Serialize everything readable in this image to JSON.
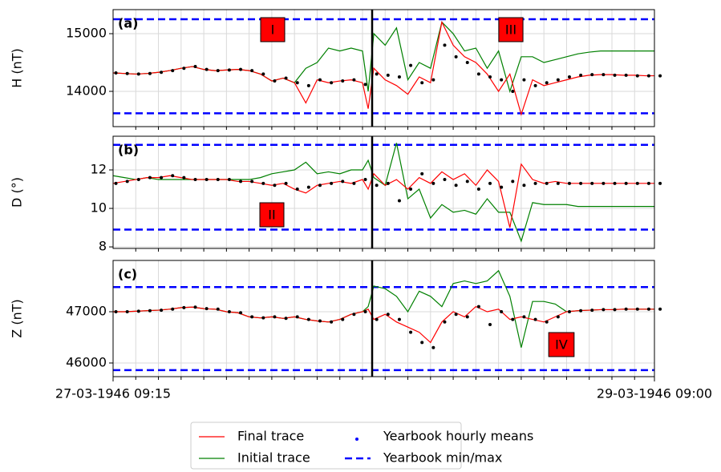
{
  "chart_data": [
    {
      "type": "line",
      "panel_label": "(a)",
      "ylabel": "H (nT)",
      "ylim": [
        13389,
        15417
      ],
      "yticks": [
        14000,
        15000
      ],
      "grid": true,
      "xlim": [
        0,
        47.75
      ],
      "xgrid": [
        2,
        4,
        6,
        8,
        10,
        12,
        14,
        16,
        18,
        20,
        22,
        24,
        26,
        28,
        30,
        32,
        34,
        36,
        38,
        40,
        42,
        44,
        46
      ],
      "divider_x": 22.85,
      "x": [
        0,
        1,
        2,
        3,
        4,
        5,
        6,
        7,
        8,
        9,
        10,
        11,
        12,
        13,
        14,
        15,
        16,
        17,
        18,
        19,
        20,
        21,
        22,
        22.5,
        23,
        24,
        25,
        26,
        27,
        28,
        29,
        30,
        31,
        32,
        33,
        34,
        35,
        36,
        37,
        38,
        39,
        40,
        41,
        42,
        43,
        44,
        45,
        46,
        47,
        47.75
      ],
      "series": [
        {
          "name": "Final trace",
          "color": "#ff0000",
          "values": [
            14320,
            14310,
            14300,
            14310,
            14330,
            14360,
            14400,
            14430,
            14380,
            14360,
            14370,
            14380,
            14360,
            14300,
            14180,
            14230,
            14150,
            13800,
            14200,
            14150,
            14180,
            14200,
            14150,
            13700,
            14400,
            14200,
            14100,
            13950,
            14250,
            14150,
            15200,
            14800,
            14600,
            14500,
            14300,
            14000,
            14300,
            13600,
            14200,
            14100,
            14150,
            14200,
            14250,
            14280,
            14290,
            14290,
            14280,
            14280,
            14270,
            14270
          ]
        },
        {
          "name": "Initial trace",
          "color": "#008000",
          "values": [
            14320,
            14310,
            14300,
            14310,
            14330,
            14360,
            14400,
            14430,
            14380,
            14360,
            14370,
            14380,
            14360,
            14300,
            14180,
            14230,
            14150,
            14400,
            14500,
            14750,
            14700,
            14750,
            14700,
            14000,
            15000,
            14800,
            15100,
            14200,
            14500,
            14400,
            15200,
            15000,
            14700,
            14750,
            14400,
            14700,
            14000,
            14600,
            14600,
            14500,
            14550,
            14600,
            14650,
            14680,
            14700,
            14700,
            14700,
            14700,
            14700,
            14700
          ]
        }
      ],
      "means": {
        "name": "Yearbook hourly means",
        "color": "#000000",
        "legend_color": "#0000ff",
        "x": [
          0.25,
          1.25,
          2.25,
          3.25,
          4.25,
          5.25,
          6.25,
          7.25,
          8.25,
          9.25,
          10.25,
          11.25,
          12.25,
          13.25,
          14.25,
          15.25,
          16.25,
          17.25,
          18.25,
          19.25,
          20.25,
          21.25,
          22.25,
          23.25,
          24.25,
          25.25,
          26.25,
          27.25,
          28.25,
          29.25,
          30.25,
          31.25,
          32.25,
          33.25,
          34.25,
          35.25,
          36.25,
          37.25,
          38.25,
          39.25,
          40.25,
          41.25,
          42.25,
          43.25,
          44.25,
          45.25,
          46.25,
          47.25,
          48.25
        ],
        "values": [
          14320,
          14310,
          14300,
          14310,
          14330,
          14360,
          14400,
          14430,
          14380,
          14360,
          14370,
          14380,
          14360,
          14300,
          14180,
          14230,
          14150,
          14100,
          14200,
          14150,
          14180,
          14200,
          14120,
          14300,
          14280,
          14250,
          14450,
          14150,
          14200,
          14800,
          14600,
          14500,
          14300,
          14250,
          14200,
          14000,
          14200,
          14100,
          14150,
          14200,
          14250,
          14280,
          14290,
          14290,
          14280,
          14280,
          14270,
          14270,
          14270
        ]
      },
      "minmax": {
        "name": "Yearbook min/max",
        "color": "#0000ff",
        "values": [
          15250,
          13620
        ]
      },
      "annotations": [
        "I",
        "III"
      ]
    },
    {
      "type": "line",
      "panel_label": "(b)",
      "ylabel": "D (°)",
      "ylim": [
        7.92,
        13.75
      ],
      "yticks": [
        8,
        10,
        12
      ],
      "grid": true,
      "xlim": [
        0,
        47.75
      ],
      "xgrid": [
        2,
        4,
        6,
        8,
        10,
        12,
        14,
        16,
        18,
        20,
        22,
        24,
        26,
        28,
        30,
        32,
        34,
        36,
        38,
        40,
        42,
        44,
        46
      ],
      "divider_x": 22.85,
      "x": [
        0,
        1,
        2,
        3,
        4,
        5,
        6,
        7,
        8,
        9,
        10,
        11,
        12,
        13,
        14,
        15,
        16,
        17,
        18,
        19,
        20,
        21,
        22,
        22.5,
        23,
        24,
        25,
        26,
        27,
        28,
        29,
        30,
        31,
        32,
        33,
        34,
        35,
        36,
        37,
        38,
        39,
        40,
        41,
        42,
        43,
        44,
        45,
        46,
        47,
        47.75
      ],
      "series": [
        {
          "name": "Final trace",
          "color": "#ff0000",
          "values": [
            11.3,
            11.4,
            11.5,
            11.6,
            11.6,
            11.7,
            11.6,
            11.5,
            11.5,
            11.5,
            11.5,
            11.4,
            11.4,
            11.3,
            11.2,
            11.3,
            11.0,
            10.8,
            11.2,
            11.3,
            11.4,
            11.3,
            11.5,
            11.0,
            11.8,
            11.2,
            11.5,
            11.0,
            11.6,
            11.3,
            11.9,
            11.5,
            11.8,
            11.2,
            12.0,
            11.4,
            9.0,
            12.3,
            11.5,
            11.3,
            11.4,
            11.3,
            11.3,
            11.3,
            11.3,
            11.3,
            11.3,
            11.3,
            11.3,
            11.3
          ]
        },
        {
          "name": "Initial trace",
          "color": "#008000",
          "values": [
            11.7,
            11.6,
            11.5,
            11.6,
            11.5,
            11.5,
            11.5,
            11.5,
            11.5,
            11.5,
            11.5,
            11.5,
            11.5,
            11.6,
            11.8,
            11.9,
            12.0,
            12.4,
            11.8,
            11.9,
            11.8,
            12.0,
            12.0,
            12.5,
            11.6,
            11.2,
            13.4,
            10.5,
            11.0,
            9.5,
            10.2,
            9.8,
            9.9,
            9.7,
            10.5,
            9.8,
            9.8,
            8.3,
            10.3,
            10.2,
            10.2,
            10.2,
            10.1,
            10.1,
            10.1,
            10.1,
            10.1,
            10.1,
            10.1,
            10.1
          ]
        }
      ],
      "means": {
        "name": "Yearbook hourly means",
        "color": "#000000",
        "legend_color": "#0000ff",
        "x": [
          0.25,
          1.25,
          2.25,
          3.25,
          4.25,
          5.25,
          6.25,
          7.25,
          8.25,
          9.25,
          10.25,
          11.25,
          12.25,
          13.25,
          14.25,
          15.25,
          16.25,
          17.25,
          18.25,
          19.25,
          20.25,
          21.25,
          22.25,
          23.25,
          24.25,
          25.25,
          26.25,
          27.25,
          28.25,
          29.25,
          30.25,
          31.25,
          32.25,
          33.25,
          34.25,
          35.25,
          36.25,
          37.25,
          38.25,
          39.25,
          40.25,
          41.25,
          42.25,
          43.25,
          44.25,
          45.25,
          46.25,
          47.25,
          48.25
        ],
        "values": [
          11.3,
          11.4,
          11.5,
          11.6,
          11.6,
          11.7,
          11.6,
          11.5,
          11.5,
          11.5,
          11.5,
          11.4,
          11.4,
          11.3,
          11.2,
          11.3,
          11.0,
          11.1,
          11.2,
          11.3,
          11.4,
          11.3,
          11.5,
          11.2,
          11.3,
          10.4,
          11.0,
          11.8,
          11.3,
          11.5,
          11.2,
          11.4,
          11.0,
          11.3,
          11.1,
          11.4,
          11.2,
          11.3,
          11.3,
          11.3,
          11.3,
          11.3,
          11.3,
          11.3,
          11.3,
          11.3,
          11.3,
          11.3,
          11.3
        ]
      },
      "minmax": {
        "name": "Yearbook min/max",
        "color": "#0000ff",
        "values": [
          13.3,
          8.9
        ]
      },
      "annotations": [
        "II"
      ]
    },
    {
      "type": "line",
      "panel_label": "(c)",
      "ylabel": "Z (nT)",
      "ylim": [
        45734,
        48000
      ],
      "yticks": [
        46000,
        47000
      ],
      "grid": true,
      "xlim": [
        0,
        47.75
      ],
      "xgrid": [
        2,
        4,
        6,
        8,
        10,
        12,
        14,
        16,
        18,
        20,
        22,
        24,
        26,
        28,
        30,
        32,
        34,
        36,
        38,
        40,
        42,
        44,
        46
      ],
      "divider_x": 22.85,
      "xticks": [
        {
          "value": 0,
          "label": "27-03-1946 09:15"
        },
        {
          "value": 47.75,
          "label": "29-03-1946 09:00"
        }
      ],
      "x": [
        0,
        1,
        2,
        3,
        4,
        5,
        6,
        7,
        8,
        9,
        10,
        11,
        12,
        13,
        14,
        15,
        16,
        17,
        18,
        19,
        20,
        21,
        22,
        22.5,
        23,
        24,
        25,
        26,
        27,
        28,
        29,
        30,
        31,
        32,
        33,
        34,
        35,
        36,
        37,
        38,
        39,
        40,
        41,
        42,
        43,
        44,
        45,
        46,
        47,
        47.75
      ],
      "series": [
        {
          "name": "Final trace",
          "color": "#ff0000",
          "values": [
            47000,
            47000,
            47010,
            47020,
            47030,
            47050,
            47080,
            47090,
            47060,
            47050,
            47000,
            46980,
            46900,
            46880,
            46900,
            46870,
            46900,
            46850,
            46820,
            46800,
            46850,
            46950,
            47000,
            47050,
            46850,
            46950,
            46800,
            46700,
            46600,
            46400,
            46800,
            47000,
            46900,
            47100,
            47000,
            47050,
            46850,
            46900,
            46850,
            46800,
            46900,
            47000,
            47020,
            47030,
            47040,
            47040,
            47050,
            47050,
            47050,
            47050
          ]
        },
        {
          "name": "Initial trace",
          "color": "#008000",
          "values": [
            47000,
            47000,
            47010,
            47020,
            47030,
            47050,
            47080,
            47090,
            47060,
            47050,
            47000,
            46980,
            46900,
            46880,
            46900,
            46870,
            46900,
            46850,
            46820,
            46800,
            46850,
            46950,
            47000,
            47100,
            47500,
            47450,
            47300,
            47000,
            47400,
            47300,
            47100,
            47550,
            47600,
            47550,
            47600,
            47800,
            47300,
            46300,
            47200,
            47200,
            47150,
            47000,
            47020,
            47030,
            47040,
            47040,
            47050,
            47050,
            47050,
            47050
          ]
        }
      ],
      "means": {
        "name": "Yearbook hourly means",
        "color": "#000000",
        "legend_color": "#0000ff",
        "x": [
          0.25,
          1.25,
          2.25,
          3.25,
          4.25,
          5.25,
          6.25,
          7.25,
          8.25,
          9.25,
          10.25,
          11.25,
          12.25,
          13.25,
          14.25,
          15.25,
          16.25,
          17.25,
          18.25,
          19.25,
          20.25,
          21.25,
          22.25,
          23.25,
          24.25,
          25.25,
          26.25,
          27.25,
          28.25,
          29.25,
          30.25,
          31.25,
          32.25,
          33.25,
          34.25,
          35.25,
          36.25,
          37.25,
          38.25,
          39.25,
          40.25,
          41.25,
          42.25,
          43.25,
          44.25,
          45.25,
          46.25,
          47.25,
          48.25
        ],
        "values": [
          47000,
          47000,
          47010,
          47020,
          47030,
          47050,
          47080,
          47090,
          47060,
          47050,
          47000,
          46980,
          46900,
          46880,
          46900,
          46870,
          46900,
          46850,
          46820,
          46800,
          46850,
          46950,
          47000,
          46850,
          46950,
          46850,
          46600,
          46400,
          46300,
          46800,
          46950,
          46900,
          47100,
          46750,
          47000,
          46850,
          46900,
          46850,
          46800,
          46900,
          47000,
          47020,
          47030,
          47040,
          47040,
          47050,
          47050,
          47050,
          47050
        ]
      },
      "minmax": {
        "name": "Yearbook min/max",
        "color": "#0000ff",
        "values": [
          47480,
          45860
        ]
      },
      "annotations": [
        "IV"
      ]
    }
  ]
}
